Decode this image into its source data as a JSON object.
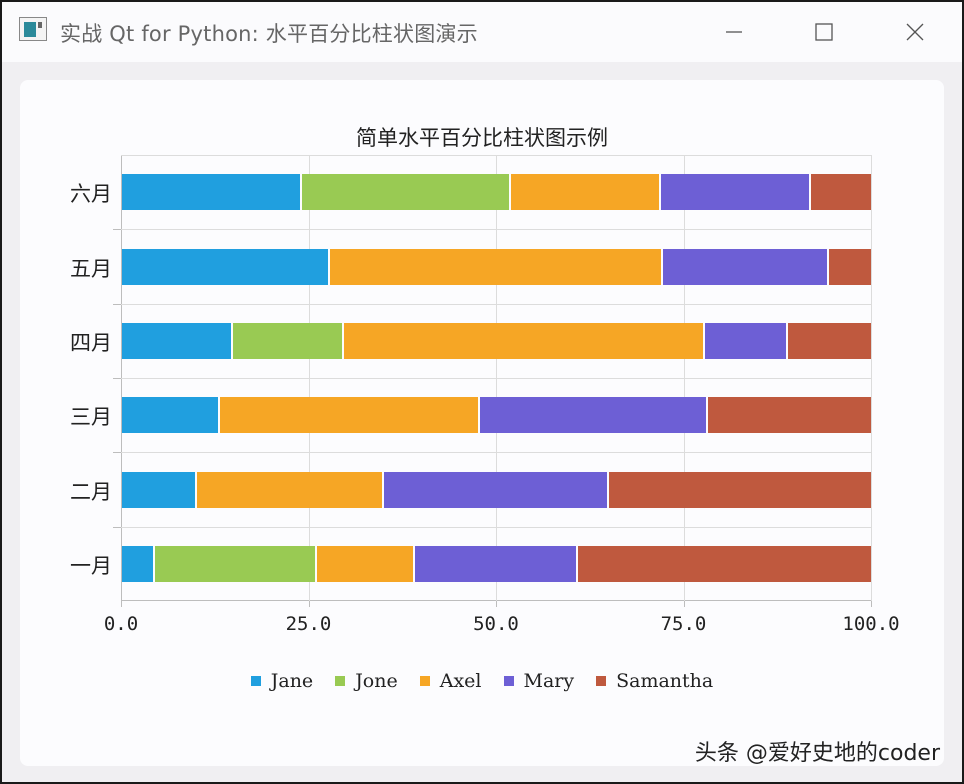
{
  "window": {
    "title": "实战 Qt for Python: 水平百分比柱状图演示",
    "controls": {
      "minimize": "—",
      "maximize": "☐",
      "close": "✕"
    }
  },
  "chart": {
    "title": "简单水平百分比柱状图示例",
    "x_ticks": [
      "0.0",
      "25.0",
      "50.0",
      "75.0",
      "100.0"
    ],
    "categories": [
      "一月",
      "二月",
      "三月",
      "四月",
      "五月",
      "六月"
    ],
    "legend": [
      {
        "name": "Jane",
        "color": "#209fdf"
      },
      {
        "name": "Jone",
        "color": "#99ca53"
      },
      {
        "name": "Axel",
        "color": "#f6a625"
      },
      {
        "name": "Mary",
        "color": "#6d5fd5"
      },
      {
        "name": "Samantha",
        "color": "#bf593e"
      }
    ]
  },
  "watermark": "头条 @爱好史地的coder",
  "chart_data": {
    "type": "bar",
    "orientation": "horizontal",
    "stacking": "percent",
    "title": "简单水平百分比柱状图示例",
    "categories": [
      "一月",
      "二月",
      "三月",
      "四月",
      "五月",
      "六月"
    ],
    "series": [
      {
        "name": "Jane",
        "values": [
          1,
          2,
          3,
          4,
          5,
          6
        ],
        "color": "#209fdf"
      },
      {
        "name": "Jone",
        "values": [
          5,
          0,
          0,
          4,
          0,
          7
        ],
        "color": "#99ca53"
      },
      {
        "name": "Axel",
        "values": [
          3,
          5,
          8,
          13,
          8,
          5
        ],
        "color": "#f6a625"
      },
      {
        "name": "Mary",
        "values": [
          5,
          6,
          7,
          3,
          4,
          5
        ],
        "color": "#6d5fd5"
      },
      {
        "name": "Samantha",
        "values": [
          9,
          7,
          5,
          3,
          1,
          2
        ],
        "color": "#bf593e"
      }
    ],
    "xlabel": "",
    "ylabel": "",
    "xlim": [
      0,
      100
    ],
    "x_ticks": [
      0,
      25,
      50,
      75,
      100
    ],
    "grid": true,
    "legend_position": "bottom"
  }
}
